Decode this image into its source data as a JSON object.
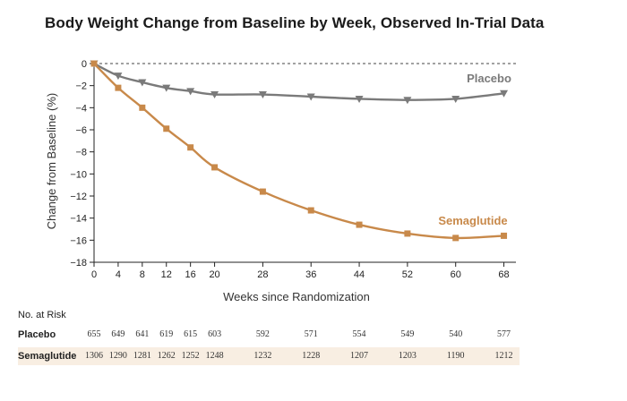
{
  "chart_data": {
    "type": "line",
    "title": "Body Weight Change from Baseline by Week, Observed In-Trial Data",
    "xlabel": "Weeks since Randomization",
    "ylabel": "Change from Baseline (%)",
    "xlim": [
      0,
      70
    ],
    "ylim": [
      -18,
      0
    ],
    "x_ticks": [
      0,
      4,
      8,
      12,
      16,
      20,
      28,
      36,
      44,
      52,
      60,
      68
    ],
    "y_ticks": [
      0,
      -2,
      -4,
      -6,
      -8,
      -10,
      -12,
      -14,
      -16,
      -18
    ],
    "x": [
      0,
      4,
      8,
      12,
      16,
      20,
      28,
      36,
      44,
      52,
      60,
      68
    ],
    "series": [
      {
        "name": "Placebo",
        "color": "#7a7a7a",
        "marker": "triangle-down",
        "values": [
          0,
          -1.1,
          -1.7,
          -2.2,
          -2.5,
          -2.8,
          -2.8,
          -3.0,
          -3.2,
          -3.3,
          -3.2,
          -2.7
        ]
      },
      {
        "name": "Semaglutide",
        "color": "#c8894a",
        "marker": "square",
        "values": [
          0,
          -2.2,
          -4.0,
          -5.9,
          -7.6,
          -9.4,
          -11.6,
          -13.3,
          -14.6,
          -15.4,
          -15.8,
          -15.6
        ]
      }
    ],
    "baseline_reference_line": "dashed at 0",
    "risk_table": {
      "heading": "No. at Risk",
      "rows": [
        {
          "label": "Placebo",
          "values": [
            "655",
            "649",
            "641",
            "619",
            "615",
            "603",
            "592",
            "571",
            "554",
            "549",
            "540",
            "577"
          ]
        },
        {
          "label": "Semaglutide",
          "values": [
            "1306",
            "1290",
            "1281",
            "1262",
            "1252",
            "1248",
            "1232",
            "1228",
            "1207",
            "1203",
            "1190",
            "1212"
          ]
        }
      ]
    }
  }
}
